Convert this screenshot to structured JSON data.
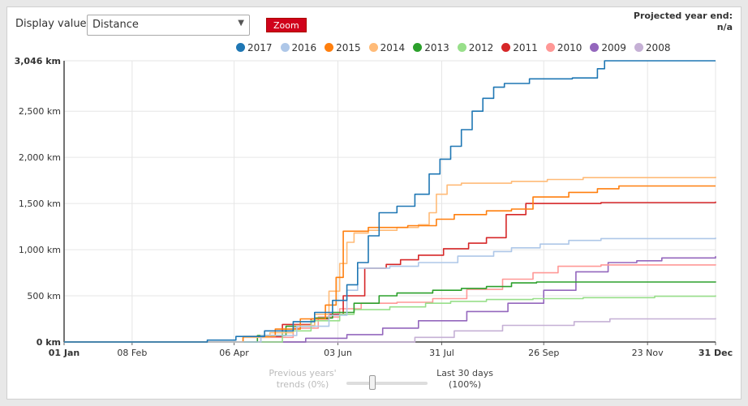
{
  "controls": {
    "display_label": "Display value:",
    "display_value": "Distance",
    "zoom_label": "Zoom",
    "projected_label": "Projected year end:",
    "projected_value": "n/a"
  },
  "trend": {
    "left_line1": "Previous years'",
    "left_line2": "trends (0%)",
    "right_line1": "Last 30 days",
    "right_line2": "(100%)",
    "value_percent": 100
  },
  "chart_data": {
    "type": "line",
    "x_unit": "day of year",
    "x_ticks": [
      {
        "label": "01 Jan",
        "day": 0,
        "bold": true
      },
      {
        "label": "08 Feb",
        "day": 38
      },
      {
        "label": "06 Apr",
        "day": 95
      },
      {
        "label": "03 Jun",
        "day": 153
      },
      {
        "label": "31 Jul",
        "day": 211
      },
      {
        "label": "26 Sep",
        "day": 268
      },
      {
        "label": "23 Nov",
        "day": 326
      },
      {
        "label": "31 Dec",
        "day": 364,
        "bold": true
      }
    ],
    "y_ticks": [
      {
        "label": "0 km",
        "value": 0,
        "bold": true
      },
      {
        "label": "500 km",
        "value": 500
      },
      {
        "label": "1,000 km",
        "value": 1000
      },
      {
        "label": "1,500 km",
        "value": 1500
      },
      {
        "label": "2,000 km",
        "value": 2000
      },
      {
        "label": "2,500 km",
        "value": 2500
      },
      {
        "label": "3,046 km",
        "value": 3046,
        "bold": true
      }
    ],
    "xlim": [
      0,
      364
    ],
    "ylim": [
      0,
      3046
    ],
    "grid": true,
    "legend_position": "top",
    "series": [
      {
        "name": "2008",
        "color": "#c5b0d5",
        "points": [
          [
            0,
            0
          ],
          [
            162,
            0
          ],
          [
            196,
            50
          ],
          [
            218,
            120
          ],
          [
            245,
            180
          ],
          [
            285,
            220
          ],
          [
            305,
            250
          ],
          [
            364,
            258
          ]
        ]
      },
      {
        "name": "2009",
        "color": "#9467bd",
        "points": [
          [
            0,
            0
          ],
          [
            115,
            0
          ],
          [
            135,
            40
          ],
          [
            158,
            80
          ],
          [
            178,
            150
          ],
          [
            198,
            230
          ],
          [
            225,
            330
          ],
          [
            248,
            420
          ],
          [
            268,
            560
          ],
          [
            286,
            760
          ],
          [
            304,
            860
          ],
          [
            320,
            880
          ],
          [
            334,
            910
          ],
          [
            364,
            930
          ]
        ]
      },
      {
        "name": "2010",
        "color": "#ff9896",
        "points": [
          [
            0,
            0
          ],
          [
            98,
            0
          ],
          [
            110,
            50
          ],
          [
            128,
            150
          ],
          [
            142,
            270
          ],
          [
            154,
            360
          ],
          [
            166,
            420
          ],
          [
            186,
            430
          ],
          [
            206,
            470
          ],
          [
            225,
            570
          ],
          [
            245,
            680
          ],
          [
            262,
            750
          ],
          [
            276,
            820
          ],
          [
            300,
            835
          ],
          [
            364,
            840
          ]
        ]
      },
      {
        "name": "2011",
        "color": "#d62728",
        "points": [
          [
            0,
            0
          ],
          [
            100,
            0
          ],
          [
            110,
            60
          ],
          [
            122,
            190
          ],
          [
            138,
            250
          ],
          [
            148,
            300
          ],
          [
            156,
            500
          ],
          [
            168,
            800
          ],
          [
            180,
            840
          ],
          [
            188,
            890
          ],
          [
            198,
            940
          ],
          [
            212,
            1010
          ],
          [
            226,
            1070
          ],
          [
            236,
            1130
          ],
          [
            247,
            1380
          ],
          [
            258,
            1500
          ],
          [
            300,
            1510
          ],
          [
            364,
            1520
          ]
        ]
      },
      {
        "name": "2012",
        "color": "#98df8a",
        "points": [
          [
            0,
            0
          ],
          [
            105,
            0
          ],
          [
            122,
            120
          ],
          [
            138,
            230
          ],
          [
            154,
            300
          ],
          [
            162,
            350
          ],
          [
            182,
            380
          ],
          [
            202,
            420
          ],
          [
            216,
            440
          ],
          [
            236,
            460
          ],
          [
            262,
            470
          ],
          [
            290,
            480
          ],
          [
            330,
            495
          ],
          [
            364,
            505
          ]
        ]
      },
      {
        "name": "2013",
        "color": "#2ca02c",
        "points": [
          [
            0,
            0
          ],
          [
            96,
            0
          ],
          [
            108,
            70
          ],
          [
            124,
            170
          ],
          [
            140,
            260
          ],
          [
            150,
            320
          ],
          [
            162,
            420
          ],
          [
            176,
            500
          ],
          [
            186,
            530
          ],
          [
            206,
            560
          ],
          [
            222,
            580
          ],
          [
            236,
            600
          ],
          [
            250,
            640
          ],
          [
            264,
            650
          ],
          [
            310,
            650
          ],
          [
            364,
            655
          ]
        ]
      },
      {
        "name": "2014",
        "color": "#ffbb78",
        "points": [
          [
            0,
            0
          ],
          [
            85,
            0
          ],
          [
            100,
            50
          ],
          [
            115,
            100
          ],
          [
            128,
            180
          ],
          [
            140,
            300
          ],
          [
            148,
            550
          ],
          [
            154,
            850
          ],
          [
            158,
            1080
          ],
          [
            162,
            1180
          ],
          [
            170,
            1210
          ],
          [
            186,
            1240
          ],
          [
            198,
            1270
          ],
          [
            204,
            1400
          ],
          [
            208,
            1600
          ],
          [
            214,
            1700
          ],
          [
            222,
            1720
          ],
          [
            250,
            1740
          ],
          [
            270,
            1760
          ],
          [
            290,
            1780
          ],
          [
            364,
            1790
          ]
        ]
      },
      {
        "name": "2015",
        "color": "#ff7f0e",
        "points": [
          [
            0,
            0
          ],
          [
            88,
            0
          ],
          [
            100,
            60
          ],
          [
            118,
            140
          ],
          [
            132,
            250
          ],
          [
            146,
            400
          ],
          [
            152,
            700
          ],
          [
            156,
            1200
          ],
          [
            170,
            1240
          ],
          [
            192,
            1260
          ],
          [
            208,
            1330
          ],
          [
            218,
            1380
          ],
          [
            236,
            1420
          ],
          [
            250,
            1440
          ],
          [
            262,
            1570
          ],
          [
            282,
            1620
          ],
          [
            298,
            1660
          ],
          [
            310,
            1690
          ],
          [
            364,
            1690
          ]
        ]
      },
      {
        "name": "2016",
        "color": "#aec7e8",
        "points": [
          [
            0,
            0
          ],
          [
            95,
            0
          ],
          [
            110,
            70
          ],
          [
            130,
            170
          ],
          [
            148,
            290
          ],
          [
            158,
            560
          ],
          [
            164,
            800
          ],
          [
            182,
            820
          ],
          [
            198,
            860
          ],
          [
            220,
            930
          ],
          [
            240,
            980
          ],
          [
            250,
            1020
          ],
          [
            266,
            1060
          ],
          [
            282,
            1100
          ],
          [
            300,
            1120
          ],
          [
            364,
            1130
          ]
        ]
      },
      {
        "name": "2017",
        "color": "#1f77b4",
        "points": [
          [
            0,
            0
          ],
          [
            62,
            0
          ],
          [
            80,
            20
          ],
          [
            96,
            60
          ],
          [
            112,
            120
          ],
          [
            128,
            220
          ],
          [
            140,
            320
          ],
          [
            150,
            450
          ],
          [
            158,
            620
          ],
          [
            164,
            860
          ],
          [
            170,
            1150
          ],
          [
            176,
            1400
          ],
          [
            186,
            1470
          ],
          [
            196,
            1600
          ],
          [
            204,
            1820
          ],
          [
            210,
            1980
          ],
          [
            216,
            2120
          ],
          [
            222,
            2300
          ],
          [
            228,
            2500
          ],
          [
            234,
            2640
          ],
          [
            240,
            2760
          ],
          [
            246,
            2800
          ],
          [
            260,
            2850
          ],
          [
            284,
            2860
          ],
          [
            298,
            2960
          ],
          [
            302,
            3046
          ],
          [
            364,
            3046
          ]
        ]
      }
    ]
  }
}
